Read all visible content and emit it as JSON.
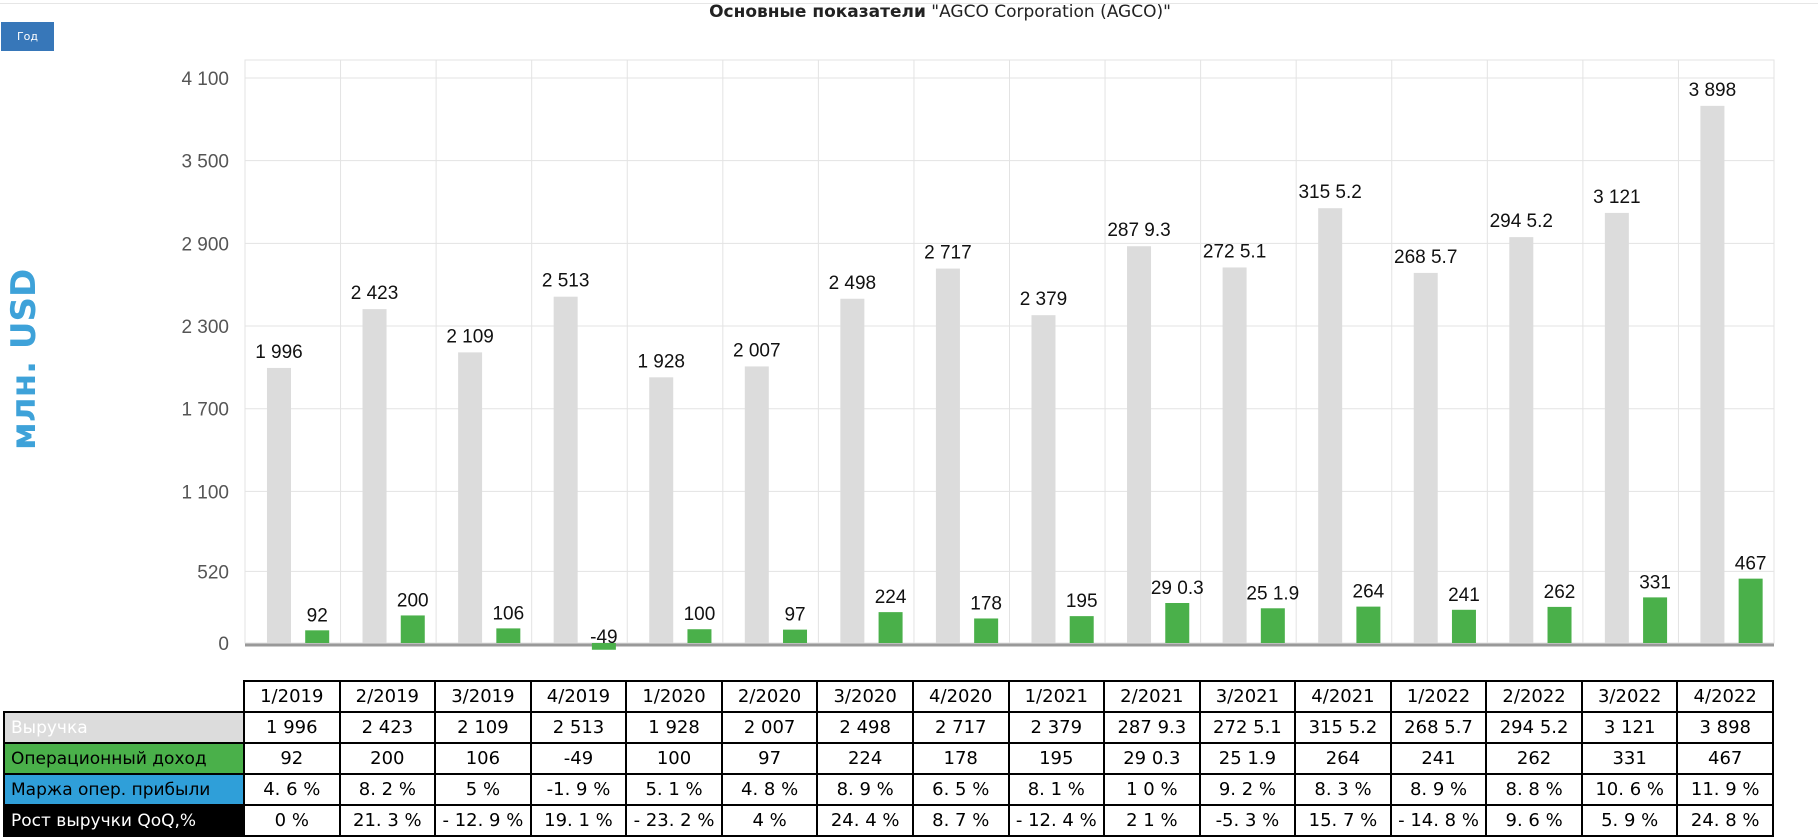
{
  "title": {
    "bold": "Основные показатели",
    "rest": " \"AGCO Corporation (AGCO)\""
  },
  "period_button": "Год",
  "colors": {
    "revenue": "#dcdcdc",
    "operating_income": "#4ab04a",
    "margin": "#2f9fd9",
    "growth": "#000000",
    "ylabel": "#3ea2d9",
    "button": "#3777b9"
  },
  "chart_data": {
    "type": "bar",
    "ylabel": "млн. USD",
    "ylim": [
      0,
      4200
    ],
    "yticks": [
      0,
      520,
      1100,
      1700,
      2300,
      2900,
      3500,
      4100
    ],
    "ytick_labels": [
      "0",
      "520",
      "1 100",
      "1 700",
      "2 300",
      "2 900",
      "3 500",
      "4 100"
    ],
    "grid": true,
    "categories": [
      "1/2019",
      "2/2019",
      "3/2019",
      "4/2019",
      "1/2020",
      "2/2020",
      "3/2020",
      "4/2020",
      "1/2021",
      "2/2021",
      "3/2021",
      "4/2021",
      "1/2022",
      "2/2022",
      "3/2022",
      "4/2022"
    ],
    "series": [
      {
        "name": "Выручка",
        "values": [
          1996,
          2423,
          2109,
          2513,
          1928,
          2007,
          2498,
          2717,
          2379,
          2879.3,
          2725.1,
          3155.2,
          2685.7,
          2945.2,
          3121,
          3898
        ],
        "labels": [
          "1 996",
          "2 423",
          "2 109",
          "2 513",
          "1 928",
          "2 007",
          "2 498",
          "2 717",
          "2 379",
          "287 9.3",
          "272 5.1",
          "315 5.2",
          "268 5.7",
          "294 5.2",
          "3 121",
          "3 898"
        ]
      },
      {
        "name": "Операционный доход",
        "values": [
          92,
          200,
          106,
          -49,
          100,
          97,
          224,
          178,
          195,
          290.3,
          251.9,
          264,
          241,
          262,
          331,
          467
        ],
        "labels": [
          "92",
          "200",
          "106",
          "-49",
          "100",
          "97",
          "224",
          "178",
          "195",
          "29 0.3",
          "25 1.9",
          "264",
          "241",
          "262",
          "331",
          "467"
        ]
      }
    ]
  },
  "table": {
    "rows": [
      {
        "label": "Выручка",
        "cells": [
          "1 996",
          "2 423",
          "2 109",
          "2 513",
          "1 928",
          "2 007",
          "2 498",
          "2 717",
          "2 379",
          "287 9.3",
          "272 5.1",
          "315 5.2",
          "268 5.7",
          "294 5.2",
          "3 121",
          "3 898"
        ]
      },
      {
        "label": "Операционный доход",
        "cells": [
          "92",
          "200",
          "106",
          "-49",
          "100",
          "97",
          "224",
          "178",
          "195",
          "29 0.3",
          "25 1.9",
          "264",
          "241",
          "262",
          "331",
          "467"
        ]
      },
      {
        "label": "Маржа опер. прибыли",
        "cells": [
          "4. 6 %",
          "8. 2 %",
          "5 %",
          "-1. 9 %",
          "5. 1 %",
          "4. 8 %",
          "8. 9 %",
          "6. 5 %",
          "8. 1 %",
          "1 0 %",
          "9. 2 %",
          "8. 3 %",
          "8. 9 %",
          "8. 8 %",
          "10. 6 %",
          "11. 9 %"
        ]
      },
      {
        "label": "Рост выручки QoQ,%",
        "cells": [
          "0 %",
          "21. 3 %",
          "- 12. 9 %",
          "19. 1 %",
          "- 23. 2 %",
          "4 %",
          "24. 4 %",
          "8. 7 %",
          "- 12. 4 %",
          "2 1 %",
          "-5. 3 %",
          "15. 7 %",
          "- 14. 8 %",
          "9. 6 %",
          "5. 9 %",
          "24. 8 %"
        ]
      }
    ]
  }
}
